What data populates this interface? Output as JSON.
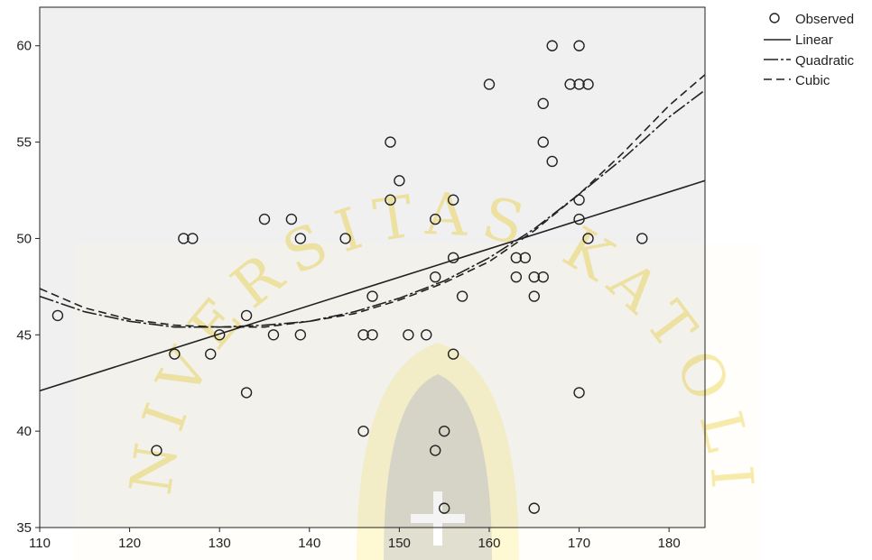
{
  "chart_data": {
    "type": "scatter",
    "title": "",
    "xlabel": "",
    "ylabel": "",
    "xlim": [
      110,
      184
    ],
    "ylim": [
      35,
      62
    ],
    "xticks": [
      110,
      120,
      130,
      140,
      150,
      160,
      170,
      180
    ],
    "yticks": [
      35,
      40,
      45,
      50,
      55,
      60
    ],
    "grid": false,
    "legend_position": "right-top outside",
    "legend": {
      "observed": "Observed",
      "linear": "Linear",
      "quadratic": "Quadratic",
      "cubic": "Cubic"
    },
    "observed_points": [
      [
        112,
        46
      ],
      [
        123,
        39
      ],
      [
        125,
        44
      ],
      [
        126,
        50
      ],
      [
        127,
        50
      ],
      [
        129,
        44
      ],
      [
        130,
        45
      ],
      [
        133,
        46
      ],
      [
        133,
        42
      ],
      [
        135,
        51
      ],
      [
        136,
        45
      ],
      [
        138,
        51
      ],
      [
        139,
        50
      ],
      [
        139,
        45
      ],
      [
        144,
        50
      ],
      [
        146,
        45
      ],
      [
        146,
        40
      ],
      [
        147,
        47
      ],
      [
        147,
        45
      ],
      [
        149,
        55
      ],
      [
        149,
        52
      ],
      [
        150,
        53
      ],
      [
        151,
        45
      ],
      [
        153,
        45
      ],
      [
        154,
        51
      ],
      [
        154,
        48
      ],
      [
        154,
        39
      ],
      [
        155,
        40
      ],
      [
        155,
        36
      ],
      [
        156,
        52
      ],
      [
        156,
        49
      ],
      [
        156,
        44
      ],
      [
        157,
        47
      ],
      [
        160,
        58
      ],
      [
        163,
        49
      ],
      [
        163,
        48
      ],
      [
        164,
        49
      ],
      [
        165,
        48
      ],
      [
        165,
        47
      ],
      [
        165,
        36
      ],
      [
        166,
        57
      ],
      [
        166,
        55
      ],
      [
        166,
        48
      ],
      [
        167,
        60
      ],
      [
        167,
        54
      ],
      [
        169,
        58
      ],
      [
        170,
        60
      ],
      [
        170,
        58
      ],
      [
        170,
        52
      ],
      [
        170,
        51
      ],
      [
        170,
        42
      ],
      [
        171,
        58
      ],
      [
        171,
        50
      ],
      [
        177,
        50
      ]
    ],
    "series": [
      {
        "name": "Linear",
        "type": "line",
        "x": [
          110,
          184
        ],
        "y": [
          42.1,
          53.0
        ]
      },
      {
        "name": "Quadratic",
        "type": "line",
        "x": [
          110,
          115,
          120,
          125,
          130,
          135,
          140,
          145,
          150,
          155,
          160,
          165,
          170,
          175,
          180,
          184
        ],
        "y": [
          47.0,
          46.2,
          45.7,
          45.4,
          45.4,
          45.5,
          45.7,
          46.2,
          46.9,
          47.8,
          49.0,
          50.5,
          52.3,
          54.2,
          56.3,
          57.7
        ]
      },
      {
        "name": "Cubic",
        "type": "line",
        "x": [
          110,
          115,
          120,
          125,
          130,
          135,
          140,
          145,
          150,
          155,
          160,
          165,
          170,
          175,
          180,
          184
        ],
        "y": [
          47.4,
          46.4,
          45.8,
          45.5,
          45.4,
          45.4,
          45.7,
          46.1,
          46.8,
          47.7,
          48.8,
          50.4,
          52.3,
          54.5,
          56.9,
          58.5
        ]
      }
    ]
  },
  "watermark": {
    "text": "UNIVERSITAS KATOLIK",
    "color": "#f0c800"
  }
}
